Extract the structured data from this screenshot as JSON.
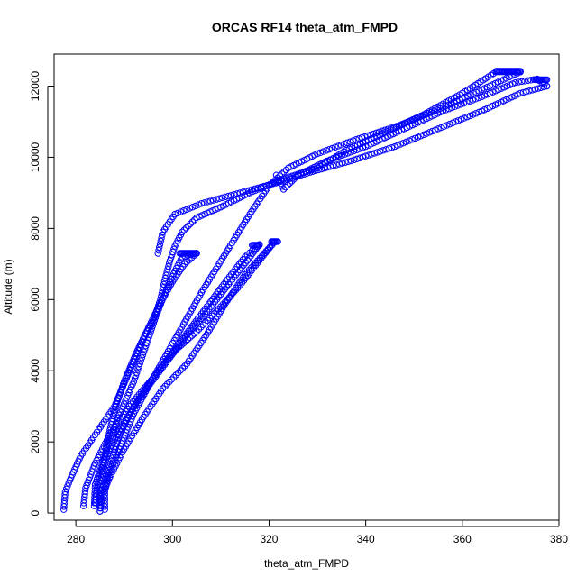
{
  "chart_data": {
    "type": "scatter",
    "title": "ORCAS RF14 theta_atm_FMPD",
    "xlabel": "theta_atm_FMPD",
    "ylabel": "Altitude (m)",
    "xlim": [
      275.5,
      380
    ],
    "ylim": [
      -200,
      12900
    ],
    "xticks": [
      280,
      300,
      320,
      340,
      360,
      380
    ],
    "yticks": [
      0,
      2000,
      4000,
      6000,
      8000,
      10000,
      12000
    ],
    "marker": "open-circle",
    "color": "#0000ff",
    "grid": false,
    "tracks": [
      [
        [
          277.5,
          100
        ],
        [
          277.8,
          600
        ],
        [
          279,
          1000
        ],
        [
          281,
          1600
        ],
        [
          284,
          2200
        ],
        [
          288,
          3000
        ],
        [
          290.5,
          3800
        ],
        [
          292.5,
          4400
        ],
        [
          294,
          4900
        ],
        [
          296,
          5400
        ],
        [
          297.5,
          6000
        ],
        [
          298.5,
          6600
        ],
        [
          299.5,
          7100
        ],
        [
          300.5,
          7500
        ],
        [
          302,
          7900
        ],
        [
          305,
          8300
        ],
        [
          310,
          8600
        ],
        [
          316,
          9000
        ],
        [
          323,
          9400
        ],
        [
          330,
          9700
        ],
        [
          336,
          10200
        ],
        [
          344,
          10700
        ],
        [
          352,
          11200
        ],
        [
          360,
          11800
        ],
        [
          367,
          12400
        ],
        [
          372,
          12400
        ]
      ],
      [
        [
          372,
          12400
        ],
        [
          364,
          11900
        ],
        [
          356,
          11400
        ],
        [
          347,
          10900
        ],
        [
          338,
          10500
        ],
        [
          330,
          10100
        ],
        [
          324,
          9700
        ],
        [
          320,
          9200
        ],
        [
          316,
          8400
        ],
        [
          311,
          7300
        ],
        [
          306,
          6200
        ],
        [
          301,
          5000
        ],
        [
          296,
          3800
        ],
        [
          292,
          2800
        ],
        [
          289,
          1800
        ],
        [
          286.5,
          1000
        ],
        [
          285,
          500
        ],
        [
          285,
          50
        ]
      ],
      [
        [
          285,
          50
        ],
        [
          285.5,
          500
        ],
        [
          287,
          1000
        ],
        [
          290,
          1800
        ],
        [
          294,
          2700
        ],
        [
          298,
          3500
        ],
        [
          303,
          4200
        ],
        [
          307,
          5000
        ],
        [
          311,
          5900
        ],
        [
          315,
          6700
        ],
        [
          319,
          7300
        ],
        [
          321,
          7600
        ]
      ],
      [
        [
          321,
          7600
        ],
        [
          318,
          7100
        ],
        [
          314,
          6400
        ],
        [
          310,
          5800
        ],
        [
          305,
          5100
        ],
        [
          300,
          4500
        ],
        [
          296,
          3800
        ],
        [
          292,
          3000
        ],
        [
          289,
          2200
        ],
        [
          287,
          1300
        ],
        [
          286,
          600
        ],
        [
          286,
          100
        ]
      ],
      [
        [
          283.8,
          200
        ],
        [
          284,
          800
        ],
        [
          286,
          1600
        ],
        [
          288.5,
          2600
        ],
        [
          292,
          3700
        ],
        [
          294.5,
          4700
        ],
        [
          296.5,
          5500
        ],
        [
          298.5,
          6200
        ],
        [
          300.5,
          6800
        ],
        [
          302,
          7200
        ],
        [
          305,
          7300
        ]
      ],
      [
        [
          305,
          7300
        ],
        [
          302.5,
          7000
        ],
        [
          300,
          6500
        ],
        [
          297.5,
          5900
        ],
        [
          295,
          5200
        ],
        [
          292.5,
          4500
        ],
        [
          290,
          3700
        ],
        [
          288,
          2900
        ],
        [
          286.5,
          2000
        ],
        [
          285.3,
          1000
        ],
        [
          285,
          200
        ]
      ],
      [
        [
          281.6,
          200
        ],
        [
          282,
          700
        ],
        [
          284,
          1400
        ],
        [
          287,
          2200
        ],
        [
          291,
          3000
        ],
        [
          296,
          3800
        ],
        [
          301,
          4700
        ],
        [
          306,
          5600
        ],
        [
          311,
          6500
        ],
        [
          315,
          7200
        ],
        [
          318,
          7550
        ]
      ],
      [
        [
          318,
          7550
        ],
        [
          315.5,
          7100
        ],
        [
          312,
          6500
        ],
        [
          308,
          5800
        ],
        [
          303,
          5000
        ],
        [
          298,
          4100
        ],
        [
          293,
          3200
        ],
        [
          289,
          2300
        ],
        [
          286,
          1500
        ],
        [
          284.5,
          800
        ],
        [
          284,
          300
        ]
      ],
      [
        [
          321.5,
          9500
        ],
        [
          323,
          9100
        ],
        [
          326,
          9500
        ],
        [
          332,
          9900
        ],
        [
          340,
          10300
        ],
        [
          348,
          10800
        ],
        [
          356,
          11300
        ],
        [
          364,
          11700
        ],
        [
          371,
          12100
        ],
        [
          375.5,
          12200
        ],
        [
          377.5,
          12000
        ]
      ],
      [
        [
          377.5,
          12000
        ],
        [
          372,
          11800
        ],
        [
          364,
          11300
        ],
        [
          355,
          10800
        ],
        [
          346,
          10300
        ],
        [
          337,
          9900
        ],
        [
          329,
          9600
        ],
        [
          322,
          9300
        ],
        [
          314,
          9000
        ],
        [
          306,
          8700
        ],
        [
          300.5,
          8400
        ],
        [
          298,
          7900
        ],
        [
          297,
          7300
        ]
      ]
    ],
    "clusters": [
      {
        "x": [
          367,
          372
        ],
        "y": 12420
      },
      {
        "x": [
          375,
          377.5
        ],
        "y": 12180
      },
      {
        "x": [
          301.5,
          305
        ],
        "y": 7300
      },
      {
        "x": [
          316.5,
          318
        ],
        "y": 7530
      },
      {
        "x": [
          320.5,
          321.8
        ],
        "y": 7630
      }
    ]
  }
}
